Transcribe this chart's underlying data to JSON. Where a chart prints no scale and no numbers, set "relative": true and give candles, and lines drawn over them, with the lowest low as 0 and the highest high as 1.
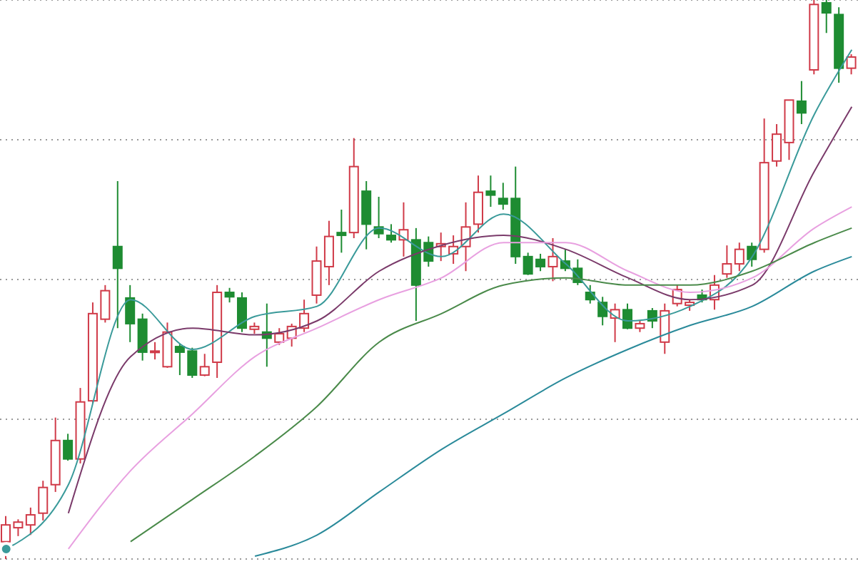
{
  "chart_data": {
    "type": "candlestick",
    "relative": true,
    "grid": "y",
    "tick_labels": false,
    "categories": [
      null,
      null,
      null,
      null,
      null,
      null,
      null,
      null,
      null,
      null,
      null,
      null,
      null,
      null,
      null,
      null,
      null,
      null,
      null,
      null,
      null,
      null,
      null,
      null,
      null,
      null,
      null,
      null,
      null,
      null,
      null,
      null,
      null,
      null,
      null,
      null,
      null,
      null,
      null,
      null,
      null,
      null,
      null,
      null,
      null,
      null,
      null,
      null,
      null,
      null,
      null,
      null,
      null,
      null,
      null,
      null,
      null,
      null,
      null,
      null,
      null,
      null,
      null,
      null,
      null,
      null,
      null,
      null,
      null
    ],
    "ohlc": [
      [
        0.031,
        0.077,
        0,
        0.061
      ],
      [
        0.056,
        0.071,
        0.041,
        0.066
      ],
      [
        0.061,
        0.092,
        0.043,
        0.079
      ],
      [
        0.082,
        0.14,
        0.069,
        0.128
      ],
      [
        0.133,
        0.253,
        0.12,
        0.212
      ],
      [
        0.212,
        0.224,
        0.176,
        0.179
      ],
      [
        0.179,
        0.306,
        0.171,
        0.281
      ],
      [
        0.283,
        0.459,
        0.278,
        0.439
      ],
      [
        0.429,
        0.49,
        0.423,
        0.48
      ],
      [
        0.559,
        0.676,
        0.413,
        0.52
      ],
      [
        0.467,
        0.49,
        0.388,
        0.421
      ],
      [
        0.429,
        0.439,
        0.355,
        0.37
      ],
      [
        0.37,
        0.388,
        0.357,
        0.372
      ],
      [
        0.344,
        0.423,
        0.342,
        0.406
      ],
      [
        0.38,
        0.385,
        0.329,
        0.37
      ],
      [
        0.372,
        0.378,
        0.324,
        0.329
      ],
      [
        0.329,
        0.367,
        0.327,
        0.344
      ],
      [
        0.352,
        0.49,
        0.324,
        0.477
      ],
      [
        0.477,
        0.485,
        0.459,
        0.469
      ],
      [
        0.467,
        0.477,
        0.406,
        0.413
      ],
      [
        0.411,
        0.423,
        0.403,
        0.416
      ],
      [
        0.406,
        0.457,
        0.344,
        0.395
      ],
      [
        0.388,
        0.413,
        0.383,
        0.403
      ],
      [
        0.395,
        0.421,
        0.38,
        0.416
      ],
      [
        0.413,
        0.464,
        0.406,
        0.439
      ],
      [
        0.472,
        0.559,
        0.457,
        0.533
      ],
      [
        0.523,
        0.605,
        0.49,
        0.577
      ],
      [
        0.584,
        0.625,
        0.548,
        0.579
      ],
      [
        0.584,
        0.753,
        0.574,
        0.702
      ],
      [
        0.658,
        0.676,
        0.554,
        0.599
      ],
      [
        0.594,
        0.648,
        0.574,
        0.582
      ],
      [
        0.579,
        0.599,
        0.566,
        0.571
      ],
      [
        0.571,
        0.638,
        0.541,
        0.589
      ],
      [
        0.571,
        0.592,
        0.426,
        0.49
      ],
      [
        0.566,
        0.577,
        0.523,
        0.533
      ],
      [
        0.559,
        0.584,
        0.533,
        0.564
      ],
      [
        0.546,
        0.579,
        0.528,
        0.559
      ],
      [
        0.559,
        0.638,
        0.515,
        0.594
      ],
      [
        0.599,
        0.686,
        0.584,
        0.656
      ],
      [
        0.658,
        0.686,
        0.63,
        0.651
      ],
      [
        0.645,
        0.673,
        0.625,
        0.635
      ],
      [
        0.645,
        0.702,
        0.528,
        0.541
      ],
      [
        0.541,
        0.548,
        0.508,
        0.51
      ],
      [
        0.536,
        0.546,
        0.515,
        0.523
      ],
      [
        0.523,
        0.574,
        0.497,
        0.541
      ],
      [
        0.533,
        0.554,
        0.515,
        0.52
      ],
      [
        0.52,
        0.536,
        0.49,
        0.495
      ],
      [
        0.477,
        0.49,
        0.457,
        0.464
      ],
      [
        0.459,
        0.469,
        0.418,
        0.434
      ],
      [
        0.431,
        0.457,
        0.388,
        0.446
      ],
      [
        0.446,
        0.457,
        0.411,
        0.413
      ],
      [
        0.413,
        0.426,
        0.406,
        0.421
      ],
      [
        0.444,
        0.449,
        0.413,
        0.426
      ],
      [
        0.388,
        0.457,
        0.367,
        0.444
      ],
      [
        0.457,
        0.49,
        0.452,
        0.482
      ],
      [
        0.454,
        0.464,
        0.444,
        0.459
      ],
      [
        0.472,
        0.482,
        0.459,
        0.464
      ],
      [
        0.464,
        0.508,
        0.446,
        0.49
      ],
      [
        0.51,
        0.561,
        0.503,
        0.528
      ],
      [
        0.528,
        0.566,
        0.515,
        0.554
      ],
      [
        0.559,
        0.566,
        0.523,
        0.536
      ],
      [
        0.554,
        0.788,
        0.548,
        0.709
      ],
      [
        0.712,
        0.778,
        0.702,
        0.76
      ],
      [
        0.745,
        0.821,
        0.714,
        0.821
      ],
      [
        0.819,
        0.855,
        0.778,
        0.798
      ],
      [
        0.875,
        1,
        0.867,
        0.992
      ],
      [
        0.995,
        1,
        0.941,
        0.977
      ],
      [
        0.974,
        0.987,
        0.852,
        0.878
      ],
      [
        0.878,
        0.903,
        0.867,
        0.898
      ]
    ],
    "series": [
      {
        "type": "line",
        "color": "#3a9a9a",
        "values": [
          0.018,
          null,
          null,
          null,
          null,
          0.133,
          null,
          null,
          null,
          null,
          0.464,
          null,
          null,
          null,
          null,
          0.375,
          null,
          null,
          null,
          null,
          0.434,
          null,
          null,
          null,
          null,
          0.452,
          null,
          null,
          null,
          null,
          0.592,
          null,
          null,
          null,
          null,
          0.541,
          null,
          null,
          null,
          null,
          0.617,
          null,
          null,
          null,
          null,
          0.528,
          null,
          null,
          null,
          null,
          0.426,
          null,
          null,
          null,
          null,
          0.452,
          null,
          null,
          null,
          null,
          0.541,
          null,
          null,
          null,
          null,
          0.796,
          null,
          null,
          0.911
        ]
      },
      {
        "type": "line",
        "color": "#7a3a6a",
        "values": [
          null,
          null,
          null,
          null,
          null,
          0.082,
          null,
          null,
          null,
          null,
          0.362,
          null,
          null,
          null,
          null,
          0.413,
          null,
          null,
          null,
          null,
          0.401,
          null,
          null,
          null,
          null,
          0.426,
          null,
          null,
          null,
          null,
          0.515,
          null,
          null,
          null,
          null,
          0.561,
          null,
          null,
          null,
          null,
          0.579,
          null,
          null,
          null,
          null,
          0.554,
          null,
          null,
          null,
          null,
          0.503,
          null,
          null,
          null,
          null,
          0.464,
          null,
          null,
          null,
          null,
          0.49,
          null,
          null,
          null,
          null,
          0.694,
          null,
          null,
          0.809
        ]
      },
      {
        "type": "line",
        "color": "#e8a0e0",
        "values": [
          null,
          null,
          null,
          null,
          null,
          0.018,
          null,
          null,
          null,
          null,
          0.158,
          null,
          null,
          null,
          null,
          0.26,
          null,
          null,
          null,
          null,
          0.362,
          null,
          null,
          null,
          null,
          0.413,
          null,
          null,
          null,
          null,
          0.464,
          null,
          null,
          null,
          null,
          0.503,
          null,
          null,
          null,
          null,
          0.566,
          null,
          null,
          null,
          null,
          0.566,
          null,
          null,
          null,
          null,
          0.515,
          null,
          null,
          null,
          null,
          0.477,
          null,
          null,
          null,
          null,
          0.503,
          null,
          null,
          null,
          null,
          0.592,
          null,
          null,
          0.63
        ]
      },
      {
        "type": "line",
        "color": "#4a8a4a",
        "values": [
          null,
          null,
          null,
          null,
          null,
          null,
          null,
          null,
          null,
          null,
          0.031,
          null,
          null,
          null,
          null,
          0.107,
          null,
          null,
          null,
          null,
          0.184,
          null,
          null,
          null,
          null,
          0.273,
          null,
          null,
          null,
          null,
          0.388,
          null,
          null,
          null,
          null,
          0.439,
          null,
          null,
          null,
          null,
          0.49,
          null,
          null,
          null,
          null,
          0.503,
          null,
          null,
          null,
          null,
          0.49,
          null,
          null,
          null,
          null,
          0.49,
          null,
          null,
          null,
          null,
          0.515,
          null,
          null,
          null,
          null,
          0.566,
          null,
          null,
          0.592
        ]
      },
      {
        "type": "line",
        "color": "#2a8a9a",
        "values": [
          null,
          null,
          null,
          null,
          null,
          null,
          null,
          null,
          null,
          null,
          null,
          null,
          null,
          null,
          null,
          null,
          null,
          null,
          null,
          null,
          0.005,
          null,
          null,
          null,
          null,
          0.043,
          null,
          null,
          null,
          null,
          0.12,
          null,
          null,
          null,
          null,
          0.196,
          null,
          null,
          null,
          null,
          0.26,
          null,
          null,
          null,
          null,
          0.324,
          null,
          null,
          null,
          null,
          0.375,
          null,
          null,
          null,
          null,
          0.418,
          null,
          null,
          null,
          null,
          0.452,
          null,
          null,
          null,
          null,
          0.515,
          null,
          null,
          0.541
        ]
      }
    ]
  }
}
